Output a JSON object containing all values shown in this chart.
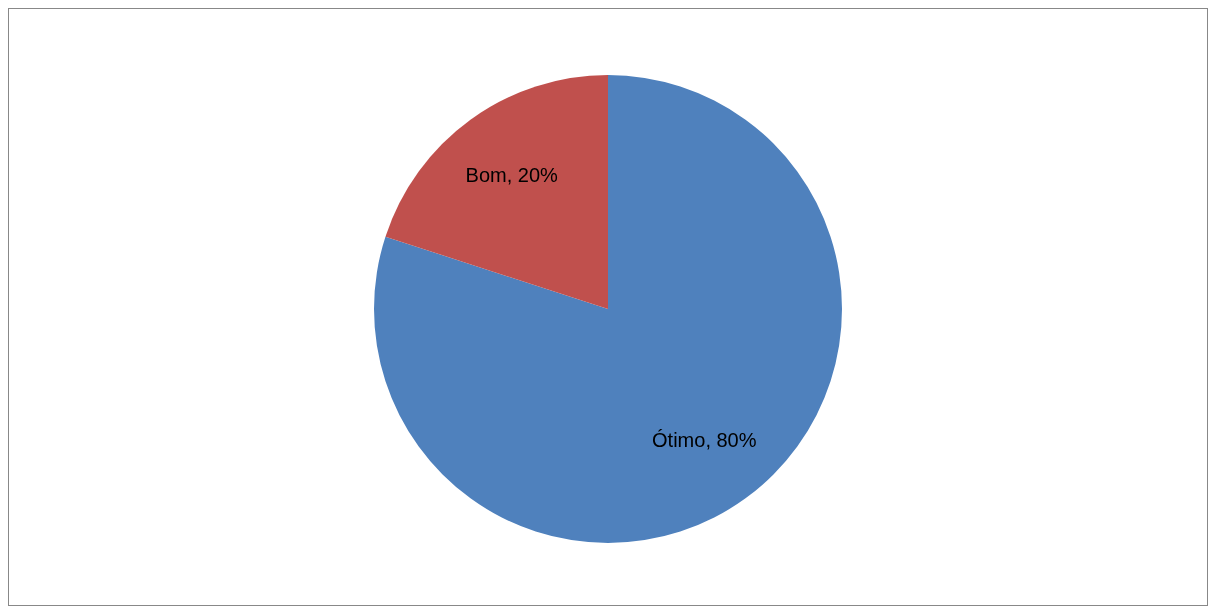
{
  "chart_data": {
    "type": "pie",
    "categories": [
      "Ótimo",
      "Bom"
    ],
    "values": [
      80,
      20
    ],
    "colors": [
      "#4f81bd",
      "#c0504d"
    ],
    "value_labels": [
      ", 80%",
      ", 20%"
    ],
    "legend": false
  }
}
